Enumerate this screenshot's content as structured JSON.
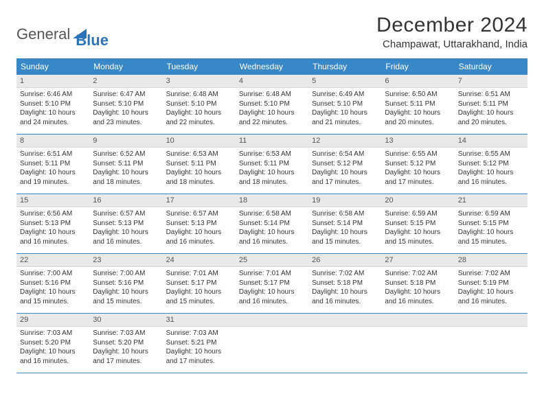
{
  "logo": {
    "text1": "General",
    "text2": "Blue"
  },
  "title": "December 2024",
  "location": "Champawat, Uttarakhand, India",
  "colors": {
    "header_bg": "#3a87c7",
    "header_fg": "#ffffff",
    "daynum_bg": "#e9e9e9",
    "week_border": "#3a87c7",
    "logo_blue": "#2b72b8"
  },
  "dow": [
    "Sunday",
    "Monday",
    "Tuesday",
    "Wednesday",
    "Thursday",
    "Friday",
    "Saturday"
  ],
  "weeks": [
    [
      {
        "n": "1",
        "sr": "Sunrise: 6:46 AM",
        "ss": "Sunset: 5:10 PM",
        "dl": "Daylight: 10 hours and 24 minutes."
      },
      {
        "n": "2",
        "sr": "Sunrise: 6:47 AM",
        "ss": "Sunset: 5:10 PM",
        "dl": "Daylight: 10 hours and 23 minutes."
      },
      {
        "n": "3",
        "sr": "Sunrise: 6:48 AM",
        "ss": "Sunset: 5:10 PM",
        "dl": "Daylight: 10 hours and 22 minutes."
      },
      {
        "n": "4",
        "sr": "Sunrise: 6:48 AM",
        "ss": "Sunset: 5:10 PM",
        "dl": "Daylight: 10 hours and 22 minutes."
      },
      {
        "n": "5",
        "sr": "Sunrise: 6:49 AM",
        "ss": "Sunset: 5:10 PM",
        "dl": "Daylight: 10 hours and 21 minutes."
      },
      {
        "n": "6",
        "sr": "Sunrise: 6:50 AM",
        "ss": "Sunset: 5:11 PM",
        "dl": "Daylight: 10 hours and 20 minutes."
      },
      {
        "n": "7",
        "sr": "Sunrise: 6:51 AM",
        "ss": "Sunset: 5:11 PM",
        "dl": "Daylight: 10 hours and 20 minutes."
      }
    ],
    [
      {
        "n": "8",
        "sr": "Sunrise: 6:51 AM",
        "ss": "Sunset: 5:11 PM",
        "dl": "Daylight: 10 hours and 19 minutes."
      },
      {
        "n": "9",
        "sr": "Sunrise: 6:52 AM",
        "ss": "Sunset: 5:11 PM",
        "dl": "Daylight: 10 hours and 18 minutes."
      },
      {
        "n": "10",
        "sr": "Sunrise: 6:53 AM",
        "ss": "Sunset: 5:11 PM",
        "dl": "Daylight: 10 hours and 18 minutes."
      },
      {
        "n": "11",
        "sr": "Sunrise: 6:53 AM",
        "ss": "Sunset: 5:11 PM",
        "dl": "Daylight: 10 hours and 18 minutes."
      },
      {
        "n": "12",
        "sr": "Sunrise: 6:54 AM",
        "ss": "Sunset: 5:12 PM",
        "dl": "Daylight: 10 hours and 17 minutes."
      },
      {
        "n": "13",
        "sr": "Sunrise: 6:55 AM",
        "ss": "Sunset: 5:12 PM",
        "dl": "Daylight: 10 hours and 17 minutes."
      },
      {
        "n": "14",
        "sr": "Sunrise: 6:55 AM",
        "ss": "Sunset: 5:12 PM",
        "dl": "Daylight: 10 hours and 16 minutes."
      }
    ],
    [
      {
        "n": "15",
        "sr": "Sunrise: 6:56 AM",
        "ss": "Sunset: 5:13 PM",
        "dl": "Daylight: 10 hours and 16 minutes."
      },
      {
        "n": "16",
        "sr": "Sunrise: 6:57 AM",
        "ss": "Sunset: 5:13 PM",
        "dl": "Daylight: 10 hours and 16 minutes."
      },
      {
        "n": "17",
        "sr": "Sunrise: 6:57 AM",
        "ss": "Sunset: 5:13 PM",
        "dl": "Daylight: 10 hours and 16 minutes."
      },
      {
        "n": "18",
        "sr": "Sunrise: 6:58 AM",
        "ss": "Sunset: 5:14 PM",
        "dl": "Daylight: 10 hours and 16 minutes."
      },
      {
        "n": "19",
        "sr": "Sunrise: 6:58 AM",
        "ss": "Sunset: 5:14 PM",
        "dl": "Daylight: 10 hours and 15 minutes."
      },
      {
        "n": "20",
        "sr": "Sunrise: 6:59 AM",
        "ss": "Sunset: 5:15 PM",
        "dl": "Daylight: 10 hours and 15 minutes."
      },
      {
        "n": "21",
        "sr": "Sunrise: 6:59 AM",
        "ss": "Sunset: 5:15 PM",
        "dl": "Daylight: 10 hours and 15 minutes."
      }
    ],
    [
      {
        "n": "22",
        "sr": "Sunrise: 7:00 AM",
        "ss": "Sunset: 5:16 PM",
        "dl": "Daylight: 10 hours and 15 minutes."
      },
      {
        "n": "23",
        "sr": "Sunrise: 7:00 AM",
        "ss": "Sunset: 5:16 PM",
        "dl": "Daylight: 10 hours and 15 minutes."
      },
      {
        "n": "24",
        "sr": "Sunrise: 7:01 AM",
        "ss": "Sunset: 5:17 PM",
        "dl": "Daylight: 10 hours and 15 minutes."
      },
      {
        "n": "25",
        "sr": "Sunrise: 7:01 AM",
        "ss": "Sunset: 5:17 PM",
        "dl": "Daylight: 10 hours and 16 minutes."
      },
      {
        "n": "26",
        "sr": "Sunrise: 7:02 AM",
        "ss": "Sunset: 5:18 PM",
        "dl": "Daylight: 10 hours and 16 minutes."
      },
      {
        "n": "27",
        "sr": "Sunrise: 7:02 AM",
        "ss": "Sunset: 5:18 PM",
        "dl": "Daylight: 10 hours and 16 minutes."
      },
      {
        "n": "28",
        "sr": "Sunrise: 7:02 AM",
        "ss": "Sunset: 5:19 PM",
        "dl": "Daylight: 10 hours and 16 minutes."
      }
    ],
    [
      {
        "n": "29",
        "sr": "Sunrise: 7:03 AM",
        "ss": "Sunset: 5:20 PM",
        "dl": "Daylight: 10 hours and 16 minutes."
      },
      {
        "n": "30",
        "sr": "Sunrise: 7:03 AM",
        "ss": "Sunset: 5:20 PM",
        "dl": "Daylight: 10 hours and 17 minutes."
      },
      {
        "n": "31",
        "sr": "Sunrise: 7:03 AM",
        "ss": "Sunset: 5:21 PM",
        "dl": "Daylight: 10 hours and 17 minutes."
      },
      {
        "n": "",
        "sr": "",
        "ss": "",
        "dl": ""
      },
      {
        "n": "",
        "sr": "",
        "ss": "",
        "dl": ""
      },
      {
        "n": "",
        "sr": "",
        "ss": "",
        "dl": ""
      },
      {
        "n": "",
        "sr": "",
        "ss": "",
        "dl": ""
      }
    ]
  ]
}
